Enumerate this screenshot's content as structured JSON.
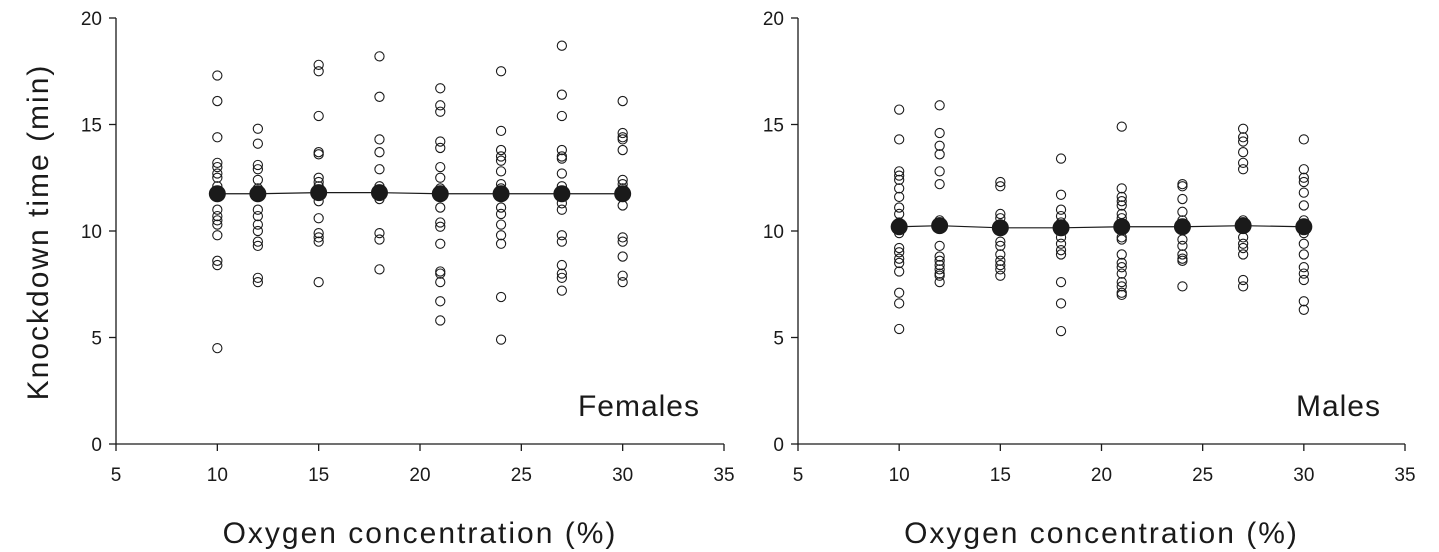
{
  "chart_data": {
    "type": "scatter",
    "ylabel": "Knockdown time (min)",
    "xlabel": "Oxygen concentration (%)",
    "xlim": [
      5,
      35
    ],
    "ylim": [
      0,
      20
    ],
    "xticks": [
      "5",
      "10",
      "15",
      "20",
      "25",
      "30",
      "35"
    ],
    "yticks": [
      "0",
      "5",
      "10",
      "15",
      "20"
    ],
    "grid": false,
    "legend": "none",
    "colors": {
      "points": "#1a1a1a",
      "mean": "#1a1a1a",
      "axis": "#1a1a1a"
    },
    "panels": [
      {
        "label": "Females",
        "series": [
          {
            "name": "",
            "marker": "open-circle",
            "points": [
              [
                10,
                17.3
              ],
              [
                10,
                16.1
              ],
              [
                10,
                14.4
              ],
              [
                10,
                13.2
              ],
              [
                10,
                13.0
              ],
              [
                10,
                12.7
              ],
              [
                10,
                12.5
              ],
              [
                10,
                12.1
              ],
              [
                10,
                11.6
              ],
              [
                10,
                11.0
              ],
              [
                10,
                10.7
              ],
              [
                10,
                10.5
              ],
              [
                10,
                10.3
              ],
              [
                10,
                9.8
              ],
              [
                10,
                8.6
              ],
              [
                10,
                8.4
              ],
              [
                10,
                4.5
              ],
              [
                12,
                14.8
              ],
              [
                12,
                14.1
              ],
              [
                12,
                13.1
              ],
              [
                12,
                12.9
              ],
              [
                12,
                12.4
              ],
              [
                12,
                12.0
              ],
              [
                12,
                11.6
              ],
              [
                12,
                11.0
              ],
              [
                12,
                10.7
              ],
              [
                12,
                10.3
              ],
              [
                12,
                10.0
              ],
              [
                12,
                9.5
              ],
              [
                12,
                9.3
              ],
              [
                12,
                7.8
              ],
              [
                12,
                7.6
              ],
              [
                15,
                17.8
              ],
              [
                15,
                17.5
              ],
              [
                15,
                15.4
              ],
              [
                15,
                13.7
              ],
              [
                15,
                13.6
              ],
              [
                15,
                12.5
              ],
              [
                15,
                12.3
              ],
              [
                15,
                12.1
              ],
              [
                15,
                11.7
              ],
              [
                15,
                11.4
              ],
              [
                15,
                10.6
              ],
              [
                15,
                9.9
              ],
              [
                15,
                9.7
              ],
              [
                15,
                9.5
              ],
              [
                15,
                7.6
              ],
              [
                18,
                18.2
              ],
              [
                18,
                16.3
              ],
              [
                18,
                14.3
              ],
              [
                18,
                13.7
              ],
              [
                18,
                12.9
              ],
              [
                18,
                12.1
              ],
              [
                18,
                11.7
              ],
              [
                18,
                11.5
              ],
              [
                18,
                9.9
              ],
              [
                18,
                9.6
              ],
              [
                18,
                8.2
              ],
              [
                21,
                16.7
              ],
              [
                21,
                15.9
              ],
              [
                21,
                15.6
              ],
              [
                21,
                14.2
              ],
              [
                21,
                13.9
              ],
              [
                21,
                13.0
              ],
              [
                21,
                12.5
              ],
              [
                21,
                12.0
              ],
              [
                21,
                11.6
              ],
              [
                21,
                11.1
              ],
              [
                21,
                10.4
              ],
              [
                21,
                10.2
              ],
              [
                21,
                9.4
              ],
              [
                21,
                8.1
              ],
              [
                21,
                8.0
              ],
              [
                21,
                7.6
              ],
              [
                21,
                6.7
              ],
              [
                21,
                5.8
              ],
              [
                24,
                17.5
              ],
              [
                24,
                14.7
              ],
              [
                24,
                13.8
              ],
              [
                24,
                13.5
              ],
              [
                24,
                13.3
              ],
              [
                24,
                12.8
              ],
              [
                24,
                12.2
              ],
              [
                24,
                12.0
              ],
              [
                24,
                11.1
              ],
              [
                24,
                10.8
              ],
              [
                24,
                10.3
              ],
              [
                24,
                9.8
              ],
              [
                24,
                9.4
              ],
              [
                24,
                6.9
              ],
              [
                24,
                4.9
              ],
              [
                27,
                18.7
              ],
              [
                27,
                16.4
              ],
              [
                27,
                15.4
              ],
              [
                27,
                13.8
              ],
              [
                27,
                13.5
              ],
              [
                27,
                13.4
              ],
              [
                27,
                12.7
              ],
              [
                27,
                12.1
              ],
              [
                27,
                11.6
              ],
              [
                27,
                11.3
              ],
              [
                27,
                11.0
              ],
              [
                27,
                9.8
              ],
              [
                27,
                9.5
              ],
              [
                27,
                8.4
              ],
              [
                27,
                8.0
              ],
              [
                27,
                7.8
              ],
              [
                27,
                7.2
              ],
              [
                30,
                16.1
              ],
              [
                30,
                14.6
              ],
              [
                30,
                14.4
              ],
              [
                30,
                14.3
              ],
              [
                30,
                13.8
              ],
              [
                30,
                12.4
              ],
              [
                30,
                12.2
              ],
              [
                30,
                12.0
              ],
              [
                30,
                11.6
              ],
              [
                30,
                11.2
              ],
              [
                30,
                9.7
              ],
              [
                30,
                9.5
              ],
              [
                30,
                8.8
              ],
              [
                30,
                7.9
              ],
              [
                30,
                7.6
              ]
            ]
          },
          {
            "name": "",
            "marker": "filled-circle-line",
            "x": [
              10,
              12,
              15,
              18,
              21,
              24,
              27,
              30
            ],
            "values": [
              11.75,
              11.75,
              11.8,
              11.8,
              11.75,
              11.75,
              11.75,
              11.75
            ]
          }
        ]
      },
      {
        "label": "Males",
        "series": [
          {
            "name": "",
            "marker": "open-circle",
            "points": [
              [
                10,
                15.7
              ],
              [
                10,
                14.3
              ],
              [
                10,
                12.8
              ],
              [
                10,
                12.6
              ],
              [
                10,
                12.4
              ],
              [
                10,
                12.0
              ],
              [
                10,
                11.6
              ],
              [
                10,
                11.1
              ],
              [
                10,
                10.8
              ],
              [
                10,
                10.4
              ],
              [
                10,
                9.9
              ],
              [
                10,
                9.2
              ],
              [
                10,
                9.0
              ],
              [
                10,
                8.7
              ],
              [
                10,
                8.5
              ],
              [
                10,
                8.1
              ],
              [
                10,
                7.1
              ],
              [
                10,
                6.6
              ],
              [
                10,
                5.4
              ],
              [
                12,
                15.9
              ],
              [
                12,
                14.6
              ],
              [
                12,
                14.0
              ],
              [
                12,
                13.6
              ],
              [
                12,
                12.8
              ],
              [
                12,
                12.2
              ],
              [
                12,
                10.5
              ],
              [
                12,
                10.4
              ],
              [
                12,
                10.1
              ],
              [
                12,
                9.3
              ],
              [
                12,
                8.8
              ],
              [
                12,
                8.6
              ],
              [
                12,
                8.4
              ],
              [
                12,
                8.2
              ],
              [
                12,
                8.0
              ],
              [
                12,
                7.9
              ],
              [
                12,
                7.6
              ],
              [
                15,
                12.3
              ],
              [
                15,
                12.1
              ],
              [
                15,
                10.8
              ],
              [
                15,
                10.6
              ],
              [
                15,
                10.3
              ],
              [
                15,
                9.5
              ],
              [
                15,
                9.3
              ],
              [
                15,
                8.9
              ],
              [
                15,
                8.6
              ],
              [
                15,
                8.4
              ],
              [
                15,
                8.2
              ],
              [
                15,
                7.9
              ],
              [
                18,
                13.4
              ],
              [
                18,
                11.7
              ],
              [
                18,
                11.0
              ],
              [
                18,
                10.7
              ],
              [
                18,
                10.4
              ],
              [
                18,
                10.0
              ],
              [
                18,
                9.7
              ],
              [
                18,
                9.4
              ],
              [
                18,
                9.1
              ],
              [
                18,
                8.9
              ],
              [
                18,
                7.6
              ],
              [
                18,
                6.6
              ],
              [
                18,
                5.3
              ],
              [
                21,
                14.9
              ],
              [
                21,
                12.0
              ],
              [
                21,
                11.6
              ],
              [
                21,
                11.4
              ],
              [
                21,
                11.2
              ],
              [
                21,
                10.8
              ],
              [
                21,
                10.6
              ],
              [
                21,
                10.3
              ],
              [
                21,
                9.7
              ],
              [
                21,
                9.6
              ],
              [
                21,
                8.9
              ],
              [
                21,
                8.5
              ],
              [
                21,
                8.3
              ],
              [
                21,
                8.0
              ],
              [
                21,
                7.6
              ],
              [
                21,
                7.4
              ],
              [
                21,
                7.1
              ],
              [
                21,
                7.0
              ],
              [
                24,
                12.2
              ],
              [
                24,
                12.1
              ],
              [
                24,
                11.5
              ],
              [
                24,
                10.9
              ],
              [
                24,
                10.5
              ],
              [
                24,
                10.1
              ],
              [
                24,
                9.6
              ],
              [
                24,
                9.3
              ],
              [
                24,
                8.9
              ],
              [
                24,
                8.7
              ],
              [
                24,
                8.6
              ],
              [
                24,
                7.4
              ],
              [
                27,
                14.8
              ],
              [
                27,
                14.4
              ],
              [
                27,
                14.2
              ],
              [
                27,
                13.7
              ],
              [
                27,
                13.2
              ],
              [
                27,
                12.9
              ],
              [
                27,
                10.5
              ],
              [
                27,
                10.3
              ],
              [
                27,
                9.7
              ],
              [
                27,
                9.4
              ],
              [
                27,
                9.2
              ],
              [
                27,
                8.9
              ],
              [
                27,
                7.7
              ],
              [
                27,
                7.4
              ],
              [
                30,
                14.3
              ],
              [
                30,
                12.9
              ],
              [
                30,
                12.5
              ],
              [
                30,
                12.3
              ],
              [
                30,
                11.8
              ],
              [
                30,
                11.2
              ],
              [
                30,
                10.5
              ],
              [
                30,
                9.9
              ],
              [
                30,
                9.4
              ],
              [
                30,
                8.9
              ],
              [
                30,
                8.3
              ],
              [
                30,
                8.0
              ],
              [
                30,
                7.7
              ],
              [
                30,
                6.7
              ],
              [
                30,
                6.3
              ]
            ]
          },
          {
            "name": "",
            "marker": "filled-circle-line",
            "x": [
              10,
              12,
              15,
              18,
              21,
              24,
              27,
              30
            ],
            "values": [
              10.2,
              10.25,
              10.15,
              10.15,
              10.2,
              10.2,
              10.25,
              10.2
            ]
          }
        ]
      }
    ]
  }
}
